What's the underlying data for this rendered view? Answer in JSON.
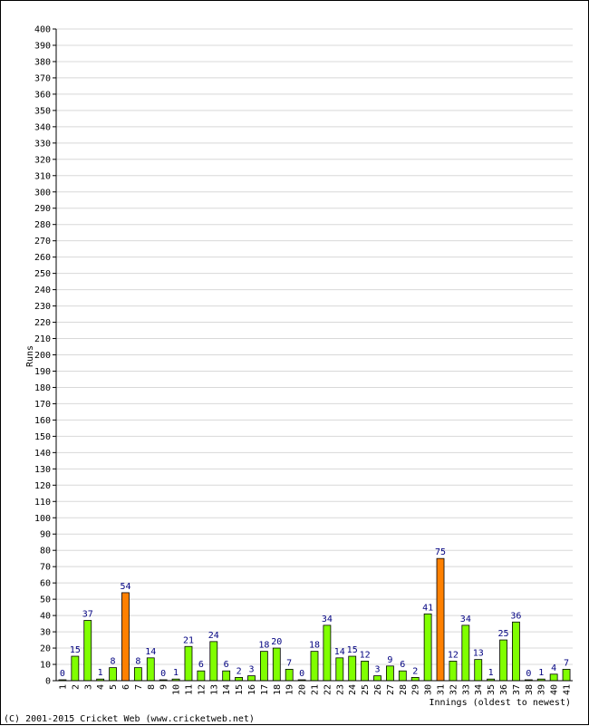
{
  "chart_data": {
    "type": "bar",
    "title": "",
    "xlabel": "Innings (oldest to newest)",
    "ylabel": "Runs",
    "ylim": [
      0,
      400
    ],
    "ytick_step": 10,
    "grid": true,
    "legend": "none",
    "categories": [
      "1",
      "2",
      "3",
      "4",
      "5",
      "6",
      "7",
      "8",
      "9",
      "10",
      "11",
      "12",
      "13",
      "14",
      "15",
      "16",
      "17",
      "18",
      "19",
      "20",
      "21",
      "22",
      "23",
      "24",
      "25",
      "26",
      "27",
      "28",
      "29",
      "30",
      "31",
      "32",
      "33",
      "34",
      "35",
      "36",
      "37",
      "38",
      "39",
      "40",
      "41"
    ],
    "values": [
      0,
      15,
      37,
      1,
      8,
      54,
      8,
      14,
      0,
      1,
      21,
      6,
      24,
      6,
      2,
      3,
      18,
      20,
      7,
      0,
      18,
      34,
      14,
      15,
      12,
      3,
      9,
      6,
      2,
      41,
      75,
      12,
      34,
      13,
      1,
      25,
      36,
      0,
      1,
      4,
      7
    ],
    "highlight_indices": [
      5,
      30
    ],
    "colors": {
      "bar": "#80ff00",
      "highlight": "#ff8000",
      "bar_outline": "#000000",
      "grid": "#d8d8d8",
      "data_label": "#000080"
    }
  },
  "footer": {
    "copyright": "(C) 2001-2015 Cricket Web (www.cricketweb.net)"
  }
}
